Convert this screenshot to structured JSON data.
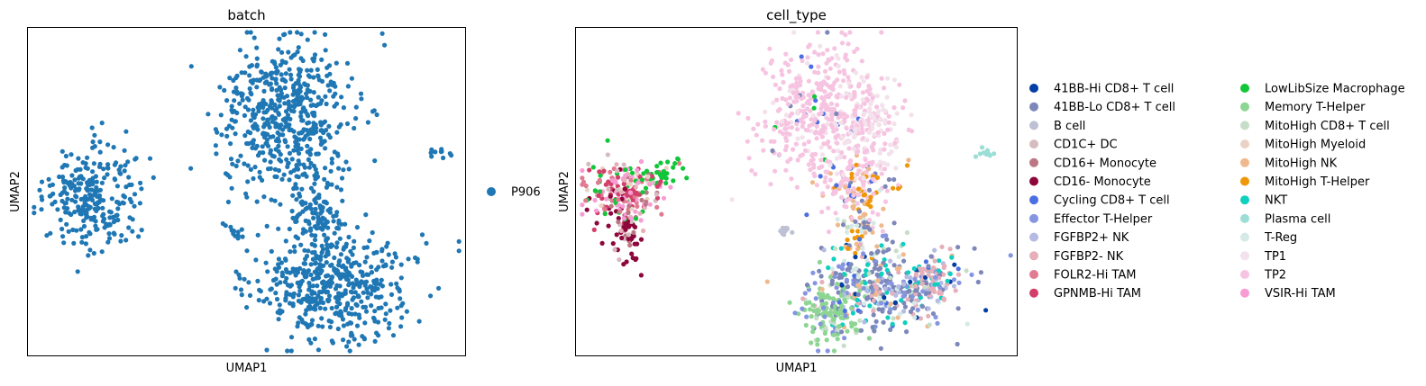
{
  "chart_data": [
    {
      "type": "scatter",
      "title": "batch",
      "xlabel": "UMAP1",
      "ylabel": "UMAP2",
      "grid": false,
      "legend_placement": "right",
      "legend": [
        {
          "label": "P906",
          "color": "#1f77b4"
        }
      ],
      "clusters": [
        {
          "name": "left-blob",
          "center": [
            0.145,
            0.52
          ],
          "spread": [
            0.055,
            0.075
          ],
          "n": 260
        },
        {
          "name": "top-main",
          "center": [
            0.59,
            0.27
          ],
          "spread": [
            0.075,
            0.12
          ],
          "n": 520
        },
        {
          "name": "middle-stem",
          "center": [
            0.66,
            0.55
          ],
          "spread": [
            0.03,
            0.07
          ],
          "n": 120
        },
        {
          "name": "bottom-main",
          "center": [
            0.7,
            0.79
          ],
          "spread": [
            0.09,
            0.08
          ],
          "n": 480
        },
        {
          "name": "small-mid",
          "center": [
            0.475,
            0.62
          ],
          "spread": [
            0.012,
            0.012
          ],
          "n": 12
        },
        {
          "name": "far-right",
          "center": [
            0.935,
            0.385
          ],
          "spread": [
            0.016,
            0.008
          ],
          "n": 10
        }
      ]
    },
    {
      "type": "scatter",
      "title": "cell_type",
      "xlabel": "UMAP1",
      "ylabel": "UMAP2",
      "grid": false,
      "legend_placement": "right (2 columns)",
      "legend": [
        {
          "label": "41BB-Hi CD8+ T cell",
          "color": "#023fa5"
        },
        {
          "label": "41BB-Lo CD8+ T cell",
          "color": "#7d87b9"
        },
        {
          "label": "B cell",
          "color": "#bec1d4"
        },
        {
          "label": "CD1C+ DC",
          "color": "#d6bcc0"
        },
        {
          "label": "CD16+ Monocyte",
          "color": "#bb7784"
        },
        {
          "label": "CD16- Monocyte",
          "color": "#8e063b"
        },
        {
          "label": "Cycling CD8+ T cell",
          "color": "#4a6fe3"
        },
        {
          "label": "Effector T-Helper",
          "color": "#8595e1"
        },
        {
          "label": "FGFBP2+ NK",
          "color": "#b5bbe3"
        },
        {
          "label": "FGFBP2- NK",
          "color": "#e6afb9"
        },
        {
          "label": "FOLR2-Hi TAM",
          "color": "#e07b91"
        },
        {
          "label": "GPNMB-Hi TAM",
          "color": "#d33f6a"
        },
        {
          "label": "LowLibSize Macrophage",
          "color": "#11c638"
        },
        {
          "label": "Memory T-Helper",
          "color": "#8dd593"
        },
        {
          "label": "MitoHigh CD8+ T cell",
          "color": "#c6dec7"
        },
        {
          "label": "MitoHigh Myeloid",
          "color": "#ead3c6"
        },
        {
          "label": "MitoHigh NK",
          "color": "#f0b98d"
        },
        {
          "label": "MitoHigh T-Helper",
          "color": "#ef9708"
        },
        {
          "label": "NKT",
          "color": "#0fcfc0"
        },
        {
          "label": "Plasma cell",
          "color": "#9cded6"
        },
        {
          "label": "T-Reg",
          "color": "#d5eae7"
        },
        {
          "label": "TP1",
          "color": "#f3e1eb"
        },
        {
          "label": "TP2",
          "color": "#f6c4e1"
        },
        {
          "label": "VSIR-Hi TAM",
          "color": "#f79cd4"
        }
      ],
      "clusters": [
        {
          "name": "tp2-top",
          "center": [
            0.56,
            0.26
          ],
          "spread": [
            0.07,
            0.11
          ],
          "n": 420,
          "mix": [
            [
              "TP2",
              0.82
            ],
            [
              "TP1",
              0.12
            ],
            [
              "Cycling CD8+ T cell",
              0.03
            ],
            [
              "LowLibSize Macrophage",
              0.01
            ],
            [
              "41BB-Lo CD8+ T cell",
              0.02
            ]
          ]
        },
        {
          "name": "tp1-right",
          "center": [
            0.66,
            0.3
          ],
          "spread": [
            0.035,
            0.08
          ],
          "n": 140,
          "mix": [
            [
              "TP1",
              0.7
            ],
            [
              "TP2",
              0.3
            ]
          ]
        },
        {
          "name": "mid-mixed",
          "center": [
            0.64,
            0.48
          ],
          "spread": [
            0.045,
            0.05
          ],
          "n": 140,
          "mix": [
            [
              "TP2",
              0.45
            ],
            [
              "MitoHigh NK",
              0.15
            ],
            [
              "MitoHigh T-Helper",
              0.15
            ],
            [
              "Cycling CD8+ T cell",
              0.08
            ],
            [
              "41BB-Lo CD8+ T cell",
              0.1
            ],
            [
              "TP1",
              0.07
            ]
          ]
        },
        {
          "name": "stem",
          "center": [
            0.65,
            0.62
          ],
          "spread": [
            0.025,
            0.05
          ],
          "n": 80,
          "mix": [
            [
              "MitoHigh T-Helper",
              0.3
            ],
            [
              "T-Reg",
              0.2
            ],
            [
              "MitoHigh NK",
              0.2
            ],
            [
              "41BB-Lo CD8+ T cell",
              0.15
            ],
            [
              "MitoHigh CD8+ T cell",
              0.15
            ]
          ]
        },
        {
          "name": "bottom-lo",
          "center": [
            0.7,
            0.79
          ],
          "spread": [
            0.08,
            0.07
          ],
          "n": 380,
          "mix": [
            [
              "41BB-Lo CD8+ T cell",
              0.35
            ],
            [
              "Effector T-Helper",
              0.13
            ],
            [
              "MitoHigh CD8+ T cell",
              0.1
            ],
            [
              "FGFBP2+ NK",
              0.08
            ],
            [
              "FGFBP2- NK",
              0.08
            ],
            [
              "NKT",
              0.08
            ],
            [
              "41BB-Hi CD8+ T cell",
              0.04
            ],
            [
              "MitoHigh NK",
              0.05
            ],
            [
              "T-Reg",
              0.05
            ],
            [
              "Cycling CD8+ T cell",
              0.04
            ]
          ]
        },
        {
          "name": "bottom-right-nk",
          "center": [
            0.8,
            0.77
          ],
          "spread": [
            0.03,
            0.04
          ],
          "n": 90,
          "mix": [
            [
              "FGFBP2- NK",
              0.55
            ],
            [
              "FGFBP2+ NK",
              0.2
            ],
            [
              "NKT",
              0.15
            ],
            [
              "41BB-Lo CD8+ T cell",
              0.1
            ]
          ]
        },
        {
          "name": "memory-th",
          "center": [
            0.58,
            0.86
          ],
          "spread": [
            0.035,
            0.05
          ],
          "n": 140,
          "mix": [
            [
              "Memory T-Helper",
              0.75
            ],
            [
              "Effector T-Helper",
              0.15
            ],
            [
              "MitoHigh CD8+ T cell",
              0.1
            ]
          ]
        },
        {
          "name": "myeloid",
          "center": [
            0.11,
            0.5
          ],
          "spread": [
            0.05,
            0.045
          ],
          "n": 230,
          "mix": [
            [
              "GPNMB-Hi TAM",
              0.22
            ],
            [
              "VSIR-Hi TAM",
              0.2
            ],
            [
              "FOLR2-Hi TAM",
              0.15
            ],
            [
              "LowLibSize Macrophage",
              0.12
            ],
            [
              "CD1C+ DC",
              0.08
            ],
            [
              "MitoHigh Myeloid",
              0.08
            ],
            [
              "CD16+ Monocyte",
              0.07
            ],
            [
              "CD16- Monocyte",
              0.05
            ],
            [
              "FGFBP2- NK",
              0.03
            ]
          ]
        },
        {
          "name": "monocyte-tail",
          "center": [
            0.115,
            0.63
          ],
          "spread": [
            0.018,
            0.045
          ],
          "n": 60,
          "mix": [
            [
              "CD16- Monocyte",
              0.7
            ],
            [
              "CD16+ Monocyte",
              0.2
            ],
            [
              "CD1C+ DC",
              0.1
            ]
          ]
        },
        {
          "name": "macrophage-right",
          "center": [
            0.2,
            0.45
          ],
          "spread": [
            0.03,
            0.02
          ],
          "n": 30,
          "mix": [
            [
              "LowLibSize Macrophage",
              0.9
            ],
            [
              "MitoHigh Myeloid",
              0.1
            ]
          ]
        },
        {
          "name": "b-cells",
          "center": [
            0.475,
            0.62
          ],
          "spread": [
            0.01,
            0.01
          ],
          "n": 12,
          "mix": [
            [
              "B cell",
              1.0
            ]
          ]
        },
        {
          "name": "plasma",
          "center": [
            0.93,
            0.385
          ],
          "spread": [
            0.015,
            0.007
          ],
          "n": 10,
          "mix": [
            [
              "Plasma cell",
              1.0
            ]
          ]
        }
      ]
    }
  ]
}
